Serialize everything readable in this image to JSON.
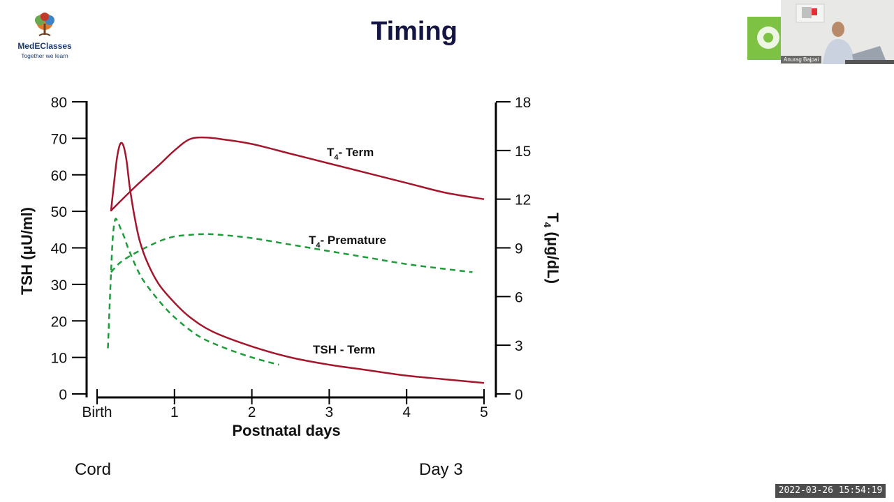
{
  "slide": {
    "title": "Timing",
    "cord_label": "Cord",
    "day3_label": "Day 3",
    "timestamp": "2022-03-26  15:54:19"
  },
  "logo": {
    "name": "MedEClasses",
    "tagline": "Together we learn"
  },
  "webcam": {
    "participant_name": "Anurag Bajpai"
  },
  "chart_data": {
    "type": "line",
    "xlabel": "Postnatal days",
    "x_ticks": [
      {
        "value": 0,
        "label": "Birth"
      },
      {
        "value": 1,
        "label": "1"
      },
      {
        "value": 2,
        "label": "2"
      },
      {
        "value": 3,
        "label": "3"
      },
      {
        "value": 4,
        "label": "4"
      },
      {
        "value": 5,
        "label": "5"
      }
    ],
    "xlim": [
      0,
      5
    ],
    "y_left": {
      "label": "TSH (μU/ml)",
      "ticks": [
        0,
        10,
        20,
        30,
        40,
        50,
        60,
        70,
        80
      ],
      "ylim": [
        0,
        80
      ]
    },
    "y_right": {
      "label_main": "T",
      "label_sub": "4",
      "label_rest": " (μg/dL)",
      "ticks": [
        0,
        3,
        6,
        9,
        12,
        15,
        18
      ],
      "ylim": [
        0,
        18
      ]
    },
    "series": [
      {
        "name": "T4-Term",
        "label_main": "T",
        "label_sub": "4",
        "label_rest": "- Term",
        "axis": "right",
        "color": "#a3162c",
        "dashed": false,
        "x": [
          0.18,
          0.5,
          0.8,
          1.0,
          1.2,
          1.4,
          1.6,
          2.0,
          2.5,
          3.0,
          3.5,
          4.0,
          4.5,
          5.0
        ],
        "y": [
          11.3,
          12.8,
          14.1,
          15.0,
          15.7,
          15.8,
          15.7,
          15.4,
          14.8,
          14.2,
          13.6,
          13.0,
          12.4,
          12.0
        ]
      },
      {
        "name": "T4-Premature",
        "label_main": "T",
        "label_sub": "4",
        "label_rest": "- Premature",
        "axis": "right",
        "color": "#1e9b3a",
        "dashed": true,
        "x": [
          0.18,
          0.3,
          0.5,
          0.8,
          1.0,
          1.2,
          1.4,
          1.6,
          2.0,
          2.5,
          3.0,
          3.5,
          4.0,
          4.5,
          4.85
        ],
        "y": [
          7.5,
          8.1,
          8.7,
          9.4,
          9.7,
          9.8,
          9.85,
          9.8,
          9.6,
          9.2,
          8.8,
          8.4,
          8.0,
          7.7,
          7.5
        ]
      },
      {
        "name": "TSH-Term",
        "label": "TSH - Term",
        "axis": "left",
        "color": "#a3162c",
        "dashed": false,
        "x": [
          0.18,
          0.22,
          0.26,
          0.3,
          0.34,
          0.38,
          0.42,
          0.48,
          0.55,
          0.65,
          0.8,
          1.0,
          1.2,
          1.5,
          2.0,
          2.5,
          3.0,
          3.5,
          4.0,
          4.5,
          5.0
        ],
        "y": [
          50,
          58,
          65,
          68.5,
          68,
          64,
          57,
          49,
          42,
          36,
          30,
          25,
          21,
          17,
          13,
          10,
          8,
          6.5,
          5,
          4,
          3
        ]
      },
      {
        "name": "TSH-Premature",
        "axis": "left",
        "color": "#1e9b3a",
        "dashed": true,
        "x": [
          0.14,
          0.17,
          0.2,
          0.23,
          0.26,
          0.3,
          0.35,
          0.4,
          0.5,
          0.6,
          0.8,
          1.0,
          1.3,
          1.6,
          2.0,
          2.35
        ],
        "y": [
          12.5,
          28,
          42,
          47.5,
          47.5,
          45.5,
          43,
          40,
          35,
          31,
          25.5,
          21,
          16,
          13,
          10,
          8
        ]
      }
    ]
  }
}
